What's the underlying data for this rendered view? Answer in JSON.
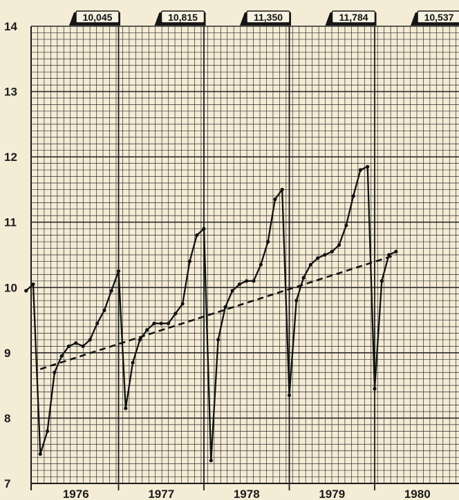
{
  "chart_data": {
    "type": "line",
    "title": "",
    "xlabel": "",
    "ylabel": "",
    "x_tick_labels": [
      "1976",
      "1977",
      "1978",
      "1979",
      "1980"
    ],
    "y_ticks": [
      7,
      8,
      9,
      10,
      11,
      12,
      13,
      14
    ],
    "ylim": [
      7,
      14
    ],
    "grid": true,
    "annual_totals": [
      "10,045",
      "10,815",
      "11,350",
      "11,784",
      "10,537"
    ],
    "series": [
      {
        "style": "solid",
        "x": [
          "1975-12",
          "1976-01",
          "1976-02",
          "1976-03",
          "1976-04",
          "1976-05",
          "1976-06",
          "1976-07",
          "1976-08",
          "1976-09",
          "1976-10",
          "1976-11",
          "1976-12",
          "1977-01",
          "1977-02",
          "1977-03",
          "1977-04",
          "1977-05",
          "1977-06",
          "1977-07",
          "1977-08",
          "1977-09",
          "1977-10",
          "1977-11",
          "1977-12",
          "1978-01",
          "1978-02",
          "1978-03",
          "1978-04",
          "1978-05",
          "1978-06",
          "1978-07",
          "1978-08",
          "1978-09",
          "1978-10",
          "1978-11",
          "1978-12",
          "1979-01",
          "1979-02",
          "1979-03",
          "1979-04",
          "1979-05",
          "1979-06",
          "1979-07",
          "1979-08",
          "1979-09",
          "1979-10",
          "1979-11",
          "1979-12",
          "1980-01",
          "1980-02",
          "1980-03",
          "1980-04"
        ],
        "values": [
          9.95,
          10.05,
          7.45,
          7.8,
          8.7,
          8.95,
          9.1,
          9.15,
          9.1,
          9.2,
          9.45,
          9.65,
          9.95,
          10.25,
          8.15,
          8.85,
          9.2,
          9.35,
          9.45,
          9.45,
          9.45,
          9.6,
          9.75,
          10.4,
          10.8,
          10.9,
          7.35,
          9.2,
          9.7,
          9.95,
          10.05,
          10.1,
          10.1,
          10.35,
          10.7,
          11.35,
          11.5,
          8.35,
          9.8,
          10.15,
          10.35,
          10.45,
          10.5,
          10.55,
          10.65,
          10.95,
          11.4,
          11.8,
          11.85,
          8.45,
          10.1,
          10.5,
          10.55
        ]
      },
      {
        "style": "dashed",
        "x": [
          "1976-02",
          "1980-04"
        ],
        "values": [
          8.75,
          10.5
        ]
      }
    ]
  }
}
